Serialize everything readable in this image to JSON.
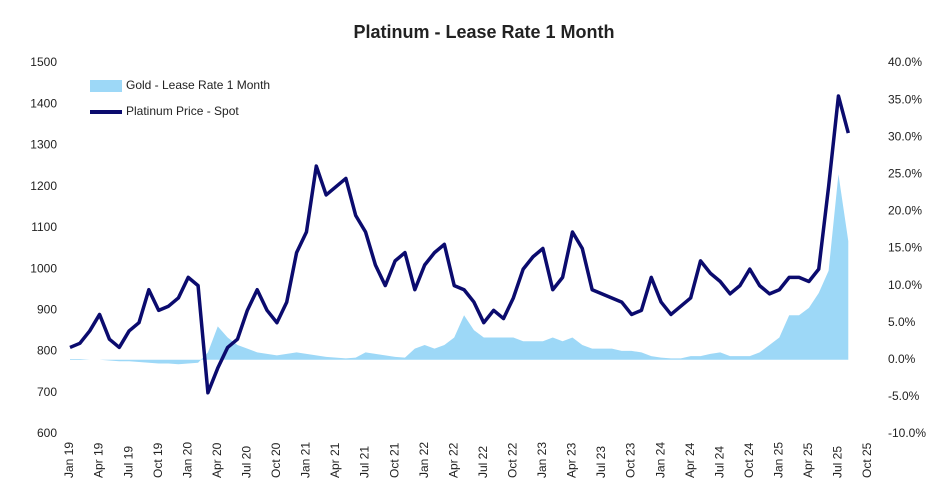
{
  "chart_data": {
    "type": "line_area",
    "title": "Platinum - Lease Rate 1 Month",
    "categories": [
      "Jan 19",
      null,
      null,
      "Apr 19",
      null,
      null,
      "Jul 19",
      null,
      null,
      "Oct 19",
      null,
      null,
      "Jan 20",
      null,
      null,
      "Apr 20",
      null,
      null,
      "Jul 20",
      null,
      null,
      "Oct 20",
      null,
      null,
      "Jan 21",
      null,
      null,
      "Apr 21",
      null,
      null,
      "Jul 21",
      null,
      null,
      "Oct 21",
      null,
      null,
      "Jan 22",
      null,
      null,
      "Apr 22",
      null,
      null,
      "Jul 22",
      null,
      null,
      "Oct 22",
      null,
      null,
      "Jan 23",
      null,
      null,
      "Apr 23",
      null,
      null,
      "Jul 23",
      null,
      null,
      "Oct 23",
      null,
      null,
      "Jan 24",
      null,
      null,
      "Apr 24",
      null,
      null,
      "Jul 24",
      null,
      null,
      "Oct 24",
      null,
      null,
      "Jan 25",
      null,
      null,
      "Apr 25",
      null,
      null,
      "Jul 25",
      null,
      null,
      "Oct 25"
    ],
    "series": [
      {
        "name": "Gold - Lease Rate 1 Month",
        "kind": "area",
        "axis": "y2",
        "color": "#9dd8f7",
        "values": [
          0.1,
          0.1,
          0,
          0,
          -0.1,
          -0.2,
          -0.2,
          -0.3,
          -0.4,
          -0.5,
          -0.5,
          -0.6,
          -0.5,
          -0.4,
          1,
          4.5,
          3,
          2,
          1.5,
          1,
          0.8,
          0.6,
          0.8,
          1,
          0.8,
          0.6,
          0.4,
          0.3,
          0.2,
          0.3,
          1,
          0.8,
          0.6,
          0.4,
          0.3,
          1.5,
          2,
          1.5,
          2,
          3,
          6,
          4,
          3,
          3,
          3,
          3,
          2.5,
          2.5,
          2.5,
          3,
          2.5,
          3,
          2,
          1.5,
          1.5,
          1.5,
          1.2,
          1.2,
          1,
          0.5,
          0.3,
          0.2,
          0.2,
          0.5,
          0.5,
          0.8,
          1,
          0.5,
          0.5,
          0.5,
          1,
          2,
          3,
          6,
          6,
          7,
          9,
          12,
          25,
          16,
          null,
          null
        ]
      },
      {
        "name": "Platinum Price - Spot",
        "kind": "line",
        "axis": "y",
        "color": "#0b0b6e",
        "values": [
          810,
          820,
          850,
          890,
          830,
          810,
          850,
          870,
          950,
          900,
          910,
          930,
          980,
          960,
          700,
          760,
          810,
          830,
          900,
          950,
          900,
          870,
          920,
          1040,
          1090,
          1250,
          1180,
          1200,
          1220,
          1130,
          1090,
          1010,
          960,
          1020,
          1040,
          950,
          1010,
          1040,
          1060,
          960,
          950,
          920,
          870,
          900,
          880,
          930,
          1000,
          1030,
          1050,
          950,
          980,
          1090,
          1050,
          950,
          940,
          930,
          920,
          890,
          900,
          980,
          920,
          890,
          910,
          930,
          1020,
          990,
          970,
          940,
          960,
          1000,
          960,
          940,
          950,
          980,
          980,
          970,
          1000,
          1200,
          1420,
          1330,
          null,
          null
        ]
      }
    ],
    "ylim": [
      600,
      1500
    ],
    "yticks": [
      600,
      700,
      800,
      900,
      1000,
      1100,
      1200,
      1300,
      1400,
      1500
    ],
    "y2lim": [
      -10,
      40
    ],
    "y2ticks": [
      {
        "value": -10,
        "label": "-10.0%"
      },
      {
        "value": -5,
        "label": "-5.0%"
      },
      {
        "value": 0,
        "label": "0.0%"
      },
      {
        "value": 5,
        "label": "5.0%"
      },
      {
        "value": 10,
        "label": "10.0%"
      },
      {
        "value": 15,
        "label": "15.0%"
      },
      {
        "value": 20,
        "label": "20.0%"
      },
      {
        "value": 25,
        "label": "25.0%"
      },
      {
        "value": 30,
        "label": "30.0%"
      },
      {
        "value": 35,
        "label": "35.0%"
      },
      {
        "value": 40,
        "label": "40.0%"
      }
    ],
    "legend": "top-left"
  }
}
